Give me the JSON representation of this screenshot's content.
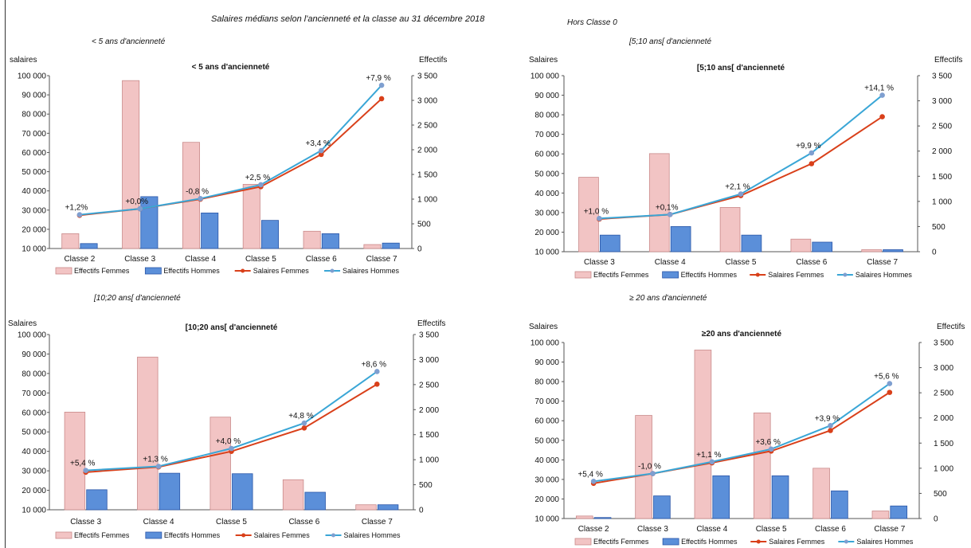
{
  "page": {
    "title": "Salaires médians selon l'ancienneté et la classe au 31 décembre 2018",
    "note": "Hors Classe 0"
  },
  "colors": {
    "effectifs_femmes": "#f2c4c4",
    "effectifs_femmes_border": "#c98a8a",
    "effectifs_hommes": "#5b8fd9",
    "effectifs_hommes_border": "#2a56a8",
    "salaires_femmes": "#d9401a",
    "salaires_hommes": "#3aa6d6",
    "salaires_hommes_marker": "#7f9fd0"
  },
  "chart_data": [
    {
      "type": "bar+line",
      "panel_label": "< 5 ans d'ancienneté",
      "title": "< 5 ans d'ancienneté",
      "ylabel_left": "salaires",
      "ylabel_right": "Effectifs",
      "categories": [
        "Classe 2",
        "Classe 3",
        "Classe 4",
        "Classe 5",
        "Classe 6",
        "Classe 7"
      ],
      "ylim_left": [
        10000,
        100000
      ],
      "ylim_right": [
        0,
        3500
      ],
      "yticks_left": [
        "10 000",
        "20 000",
        "30 000",
        "40 000",
        "50 000",
        "60 000",
        "70 000",
        "80 000",
        "90 000",
        "100 000"
      ],
      "yticks_right": [
        "0",
        "500",
        "1 000",
        "1 500",
        "2 000",
        "2 500",
        "3 000",
        "3 500"
      ],
      "bars": [
        {
          "name": "Effectifs Femmes",
          "values": [
            300,
            3400,
            2150,
            1300,
            350,
            80
          ]
        },
        {
          "name": "Effectifs Hommes",
          "values": [
            100,
            1050,
            720,
            570,
            300,
            110
          ]
        }
      ],
      "lines": [
        {
          "name": "Salaires Femmes",
          "values": [
            27300,
            30700,
            35700,
            42200,
            59000,
            88000
          ]
        },
        {
          "name": "Salaires Hommes",
          "values": [
            27600,
            30700,
            36000,
            43200,
            61000,
            95000
          ]
        }
      ],
      "annotations": [
        "+1,2%",
        "+0,0%",
        "-0,8 %",
        "+2,5 %",
        "+3,4 %",
        "+7,9 %"
      ],
      "legend_position": "bottom",
      "legend": [
        "Effectifs Femmes",
        "Effectifs Hommes",
        "Salaires Femmes",
        "Salaires Hommes"
      ]
    },
    {
      "type": "bar+line",
      "panel_label": "[5;10 ans[ d'ancienneté",
      "title": "[5;10 ans[ d'ancienneté",
      "ylabel_left": "Salaires",
      "ylabel_right": "Effectifs",
      "categories": [
        "Classe 3",
        "Classe 4",
        "Classe 5",
        "Classe 6",
        "Classe 7"
      ],
      "ylim_left": [
        10000,
        100000
      ],
      "ylim_right": [
        0,
        3500
      ],
      "yticks_left": [
        "10 000",
        "20 000",
        "30 000",
        "40 000",
        "50 000",
        "60 000",
        "70 000",
        "80 000",
        "90 000",
        "100 000"
      ],
      "yticks_right": [
        "0",
        "500",
        "1 000",
        "1 500",
        "2 000",
        "2 500",
        "3 000",
        "3 500"
      ],
      "bars": [
        {
          "name": "Effectifs Femmes",
          "values": [
            1480,
            1950,
            880,
            250,
            40
          ]
        },
        {
          "name": "Effectifs Hommes",
          "values": [
            330,
            500,
            330,
            190,
            40
          ]
        }
      ],
      "lines": [
        {
          "name": "Salaires Femmes",
          "values": [
            26700,
            29000,
            38700,
            55000,
            79000
          ]
        },
        {
          "name": "Salaires Hommes",
          "values": [
            27000,
            29000,
            39500,
            60500,
            90000
          ]
        }
      ],
      "annotations": [
        "+1,0 %",
        "+0,1%",
        "+2,1 %",
        "+9,9 %",
        "+14,1 %"
      ],
      "legend_position": "bottom",
      "legend": [
        "Effectifs Femmes",
        "Effectifs Hommes",
        "Salaires Femmes",
        "Salaires Hommes"
      ]
    },
    {
      "type": "bar+line",
      "panel_label": "[10;20 ans[ d'ancienneté",
      "title": "[10;20 ans[ d'ancienneté",
      "ylabel_left": "Salaires",
      "ylabel_right": "Effectifs",
      "categories": [
        "Classe 3",
        "Classe 4",
        "Classe 5",
        "Classe 6",
        "Classe 7"
      ],
      "ylim_left": [
        10000,
        100000
      ],
      "ylim_right": [
        0,
        3500
      ],
      "yticks_left": [
        "10 000",
        "20 000",
        "30 000",
        "40 000",
        "50 000",
        "60 000",
        "70 000",
        "80 000",
        "90 000",
        "100 000"
      ],
      "yticks_right": [
        "0",
        "500",
        "1 000",
        "1 500",
        "2 000",
        "2 500",
        "3 000",
        "3 500"
      ],
      "bars": [
        {
          "name": "Effectifs Femmes",
          "values": [
            1950,
            3050,
            1850,
            600,
            100
          ]
        },
        {
          "name": "Effectifs Hommes",
          "values": [
            400,
            730,
            720,
            350,
            100
          ]
        }
      ],
      "lines": [
        {
          "name": "Salaires Femmes",
          "values": [
            29300,
            32000,
            40000,
            52000,
            74500
          ]
        },
        {
          "name": "Salaires Hommes",
          "values": [
            30200,
            32300,
            41500,
            54500,
            81000
          ]
        }
      ],
      "annotations": [
        "+5,4 %",
        "+1,3 %",
        "+4,0 %",
        "+4,8 %",
        "+8,6 %"
      ],
      "legend_position": "bottom",
      "legend": [
        "Effectifs Femmes",
        "Effectifs Hommes",
        "Salaires Femmes",
        "Salaires Hommes"
      ]
    },
    {
      "type": "bar+line",
      "panel_label": "≥ 20 ans d'ancienneté",
      "title": "≥20 ans d'ancienneté",
      "ylabel_left": "Salaires",
      "ylabel_right": "Effectifs",
      "categories": [
        "Classe 2",
        "Classe 3",
        "Classe 4",
        "Classe 5",
        "Classe 6",
        "Classe 7"
      ],
      "ylim_left": [
        10000,
        100000
      ],
      "ylim_right": [
        0,
        3500
      ],
      "yticks_left": [
        "10 000",
        "20 000",
        "30 000",
        "40 000",
        "50 000",
        "60 000",
        "70 000",
        "80 000",
        "90 000",
        "100 000"
      ],
      "yticks_right": [
        "0",
        "500",
        "1 000",
        "1 500",
        "2 000",
        "2 500",
        "3 000",
        "3 500"
      ],
      "bars": [
        {
          "name": "Effectifs Femmes",
          "values": [
            50,
            2050,
            3350,
            2100,
            1000,
            150
          ]
        },
        {
          "name": "Effectifs Hommes",
          "values": [
            20,
            450,
            850,
            850,
            550,
            250
          ]
        }
      ],
      "lines": [
        {
          "name": "Salaires Femmes",
          "values": [
            28000,
            33000,
            38500,
            44500,
            55000,
            74500
          ]
        },
        {
          "name": "Salaires Hommes",
          "values": [
            29000,
            33000,
            39000,
            45500,
            57500,
            79000
          ]
        }
      ],
      "annotations": [
        "+5,4 %",
        "-1,0 %",
        "+1,1 %",
        "+3,6 %",
        "+3,9 %",
        "+5,6 %"
      ],
      "legend_position": "bottom",
      "legend": [
        "Effectifs Femmes",
        "Effectifs Hommes",
        "Salaires Femmes",
        "Salaires Hommes"
      ]
    }
  ]
}
